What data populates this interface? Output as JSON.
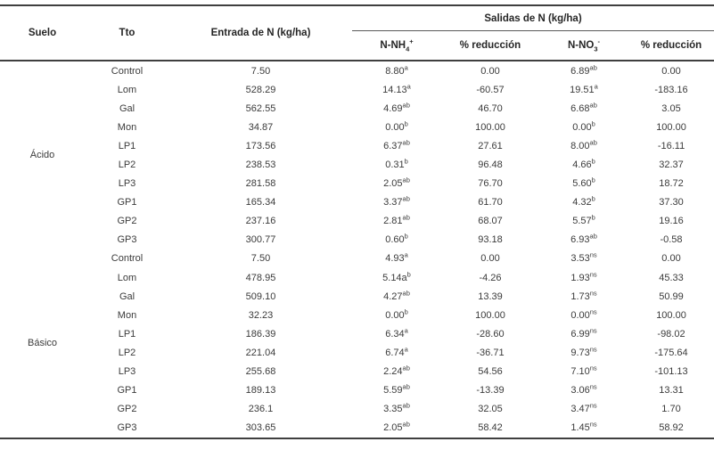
{
  "header": {
    "suelo": "Suelo",
    "tto": "Tto",
    "entrada": "Entrada de N (kg/ha)",
    "salidas_group": "Salidas de N (kg/ha)",
    "nh4": {
      "base": "N-NH",
      "sub": "4",
      "sup": "+"
    },
    "reduccion_nh4": "% reducción",
    "no3": {
      "base": "N-NO",
      "sub": "3",
      "sup": "-"
    },
    "reduccion_no3": "% reducción"
  },
  "groups": [
    {
      "suelo": "Ácido",
      "rows": [
        {
          "tto": "Control",
          "entrada": "7.50",
          "nh4": "8.80",
          "nh4_sup": "a",
          "red1": "0.00",
          "no3": "6.89",
          "no3_sup": "ab",
          "red2": "0.00"
        },
        {
          "tto": "Lom",
          "entrada": "528.29",
          "nh4": "14.13",
          "nh4_sup": "a",
          "red1": "-60.57",
          "no3": "19.51",
          "no3_sup": "a",
          "red2": "-183.16"
        },
        {
          "tto": "Gal",
          "entrada": "562.55",
          "nh4": "4.69",
          "nh4_sup": "ab",
          "red1": "46.70",
          "no3": "6.68",
          "no3_sup": "ab",
          "red2": "3.05"
        },
        {
          "tto": "Mon",
          "entrada": "34.87",
          "nh4": "0.00",
          "nh4_sup": "b",
          "red1": "100.00",
          "no3": "0.00",
          "no3_sup": "b",
          "red2": "100.00"
        },
        {
          "tto": "LP1",
          "entrada": "173.56",
          "nh4": "6.37",
          "nh4_sup": "ab",
          "red1": "27.61",
          "no3": "8.00",
          "no3_sup": "ab",
          "red2": "-16.11"
        },
        {
          "tto": "LP2",
          "entrada": "238.53",
          "nh4": "0.31",
          "nh4_sup": "b",
          "red1": "96.48",
          "no3": "4.66",
          "no3_sup": "b",
          "red2": "32.37"
        },
        {
          "tto": "LP3",
          "entrada": "281.58",
          "nh4": "2.05",
          "nh4_sup": "ab",
          "red1": "76.70",
          "no3": "5.60",
          "no3_sup": "b",
          "red2": "18.72"
        },
        {
          "tto": "GP1",
          "entrada": "165.34",
          "nh4": "3.37",
          "nh4_sup": "ab",
          "red1": "61.70",
          "no3": "4.32",
          "no3_sup": "b",
          "red2": "37.30"
        },
        {
          "tto": "GP2",
          "entrada": "237.16",
          "nh4": "2.81",
          "nh4_sup": "ab",
          "red1": "68.07",
          "no3": "5.57",
          "no3_sup": "b",
          "red2": "19.16"
        },
        {
          "tto": "GP3",
          "entrada": "300.77",
          "nh4": "0.60",
          "nh4_sup": "b",
          "red1": "93.18",
          "no3": "6.93",
          "no3_sup": "ab",
          "red2": "-0.58"
        }
      ]
    },
    {
      "suelo": "Básico",
      "rows": [
        {
          "tto": "Control",
          "entrada": "7.50",
          "nh4": "4.93",
          "nh4_sup": "a",
          "red1": "0.00",
          "no3": "3.53",
          "no3_sup": "ns",
          "red2": "0.00"
        },
        {
          "tto": "Lom",
          "entrada": "478.95",
          "nh4": "5.14a",
          "nh4_sup": "b",
          "red1": "-4.26",
          "no3": "1.93",
          "no3_sup": "ns",
          "red2": "45.33"
        },
        {
          "tto": "Gal",
          "entrada": "509.10",
          "nh4": "4.27",
          "nh4_sup": "ab",
          "red1": "13.39",
          "no3": "1.73",
          "no3_sup": "ns",
          "red2": "50.99"
        },
        {
          "tto": "Mon",
          "entrada": "32.23",
          "nh4": "0.00",
          "nh4_sup": "b",
          "red1": "100.00",
          "no3": "0.00",
          "no3_sup": "ns",
          "red2": "100.00"
        },
        {
          "tto": "LP1",
          "entrada": "186.39",
          "nh4": "6.34",
          "nh4_sup": "a",
          "red1": "-28.60",
          "no3": "6.99",
          "no3_sup": "ns",
          "red2": "-98.02"
        },
        {
          "tto": "LP2",
          "entrada": "221.04",
          "nh4": "6.74",
          "nh4_sup": "a",
          "red1": "-36.71",
          "no3": "9.73",
          "no3_sup": "ns",
          "red2": "-175.64"
        },
        {
          "tto": "LP3",
          "entrada": "255.68",
          "nh4": "2.24",
          "nh4_sup": "ab",
          "red1": "54.56",
          "no3": "7.10",
          "no3_sup": "ns",
          "red2": "-101.13"
        },
        {
          "tto": "GP1",
          "entrada": "189.13",
          "nh4": "5.59",
          "nh4_sup": "ab",
          "red1": "-13.39",
          "no3": "3.06",
          "no3_sup": "ns",
          "red2": "13.31"
        },
        {
          "tto": "GP2",
          "entrada": "236.1",
          "nh4": "3.35",
          "nh4_sup": "ab",
          "red1": "32.05",
          "no3": "3.47",
          "no3_sup": "ns",
          "red2": "1.70"
        },
        {
          "tto": "GP3",
          "entrada": "303.65",
          "nh4": "2.05",
          "nh4_sup": "ab",
          "red1": "58.42",
          "no3": "1.45",
          "no3_sup": "ns",
          "red2": "58.92"
        }
      ]
    }
  ]
}
